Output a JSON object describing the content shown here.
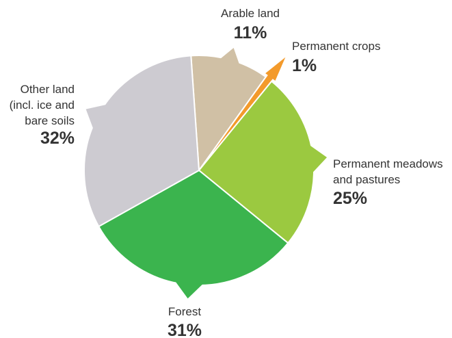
{
  "chart_data": {
    "type": "pie",
    "slices": [
      {
        "name": "Arable land",
        "label_lines": [
          "Arable land"
        ],
        "value_label": "11%",
        "value": 11,
        "color": "#d0c0a5"
      },
      {
        "name": "Permanent crops",
        "label_lines": [
          "Permanent crops"
        ],
        "value_label": "1%",
        "value": 1,
        "color": "#f39a2b"
      },
      {
        "name": "Permanent meadows and pastures",
        "label_lines": [
          "Permanent meadows",
          "and pastures"
        ],
        "value_label": "25%",
        "value": 25,
        "color": "#9bc940"
      },
      {
        "name": "Forest",
        "label_lines": [
          "Forest"
        ],
        "value_label": "31%",
        "value": 31,
        "color": "#3bb44e"
      },
      {
        "name": "Other land (incl. ice and bare soils",
        "label_lines": [
          "Other land",
          "(incl. ice and",
          "bare soils"
        ],
        "value_label": "32%",
        "value": 32,
        "color": "#cdcbd1"
      }
    ]
  }
}
